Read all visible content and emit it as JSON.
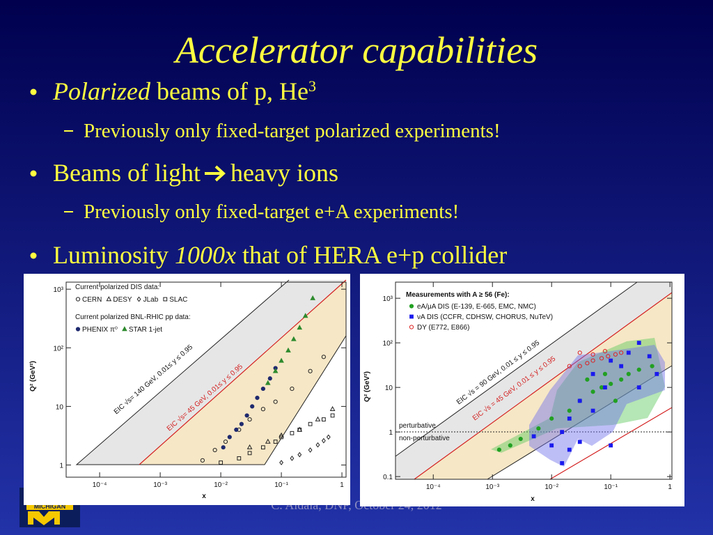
{
  "slide": {
    "title": "Accelerator capabilities",
    "bullets": [
      {
        "parts": [
          {
            "text": "Polarized",
            "italic": true
          },
          {
            "text": " beams of p, He"
          },
          {
            "text": "3",
            "sup": true
          }
        ],
        "sub": [
          "Previously only fixed-target polarized experiments!"
        ]
      },
      {
        "parts": [
          {
            "text": "Beams of light "
          },
          {
            "arrow": true
          },
          {
            "text": " heavy ions"
          }
        ],
        "sub": [
          "Previously only fixed-target e+A experiments!"
        ]
      },
      {
        "parts": [
          {
            "text": "Luminosity "
          },
          {
            "text": "1000x",
            "italic": true
          },
          {
            "text": " that of HERA e+p collider"
          }
        ],
        "sub": []
      }
    ],
    "footer": "C. Aidala, DNP, October 24, 2012",
    "logo": "MICHIGAN",
    "figures": [
      {
        "xlabel": "x",
        "ylabel": "Q² (GeV²)",
        "xlim": [
          2.8e-05,
          1.17
        ],
        "ylim": [
          0.62,
          1320
        ],
        "log": true,
        "xticks": [
          {
            "value": 0.0001,
            "label": "10⁻⁴"
          },
          {
            "value": 0.001,
            "label": "10⁻³"
          },
          {
            "value": 0.01,
            "label": "10⁻²"
          },
          {
            "value": 0.1,
            "label": "10⁻¹"
          },
          1
        ],
        "yticks": [
          1,
          10,
          {
            "value": 100,
            "label": "10²"
          },
          {
            "value": 1000,
            "label": "10³"
          }
        ],
        "annotations": [
          {
            "text": "EIC √s= 140 GeV, 0.01≤ y ≤ 0.95",
            "color": "#111111"
          },
          {
            "text": "EIC √s= 45 GeV, 0.01≤ y ≤ 0.95",
            "color": "#d42020"
          }
        ],
        "groups": [
          {
            "title": "Current polarized DIS data:",
            "series": [
              {
                "name": "CERN",
                "marker": "circle",
                "filled": false,
                "color": "#222222",
                "x": [
                  0.005,
                  0.008,
                  0.012,
                  0.02,
                  0.03,
                  0.05,
                  0.08,
                  0.15,
                  0.3,
                  0.5
                ],
                "y": [
                  1.2,
                  1.8,
                  2.5,
                  4,
                  6,
                  9,
                  12,
                  20,
                  40,
                  70
                ]
              },
              {
                "name": "DESY",
                "marker": "triangle",
                "filled": false,
                "color": "#222222",
                "x": [
                  0.03,
                  0.06,
                  0.1,
                  0.2,
                  0.4,
                  0.7
                ],
                "y": [
                  2,
                  2.5,
                  3.2,
                  4,
                  6,
                  9
                ]
              },
              {
                "name": "JLab",
                "marker": "diamond",
                "filled": false,
                "color": "#222222",
                "x": [
                  0.1,
                  0.15,
                  0.2,
                  0.3,
                  0.4,
                  0.5,
                  0.6
                ],
                "y": [
                  1.1,
                  1.3,
                  1.5,
                  1.8,
                  2.2,
                  2.6,
                  3
                ]
              },
              {
                "name": "SLAC",
                "marker": "square",
                "filled": false,
                "color": "#222222",
                "x": [
                  0.01,
                  0.02,
                  0.03,
                  0.05,
                  0.08,
                  0.1,
                  0.15,
                  0.2,
                  0.3,
                  0.5,
                  0.7
                ],
                "y": [
                  1.1,
                  1.3,
                  1.6,
                  2,
                  2.5,
                  3,
                  3.5,
                  4,
                  5,
                  6,
                  7
                ]
              }
            ]
          },
          {
            "title": "Current polarized BNL-RHIC pp data:",
            "series": [
              {
                "name": "PHENIX π⁰",
                "marker": "circle",
                "filled": true,
                "color": "#1f2a6e",
                "x": [
                  0.011,
                  0.014,
                  0.018,
                  0.022,
                  0.027,
                  0.033,
                  0.04,
                  0.05,
                  0.065,
                  0.08
                ],
                "y": [
                  2,
                  3,
                  4,
                  5,
                  7,
                  10,
                  14,
                  20,
                  30,
                  45
                ]
              },
              {
                "name": "STAR 1-jet",
                "marker": "triangle",
                "filled": true,
                "color": "#2e8b2e",
                "x": [
                  0.06,
                  0.08,
                  0.1,
                  0.13,
                  0.16,
                  0.2,
                  0.25,
                  0.33
                ],
                "y": [
                  25,
                  40,
                  60,
                  90,
                  140,
                  220,
                  350,
                  700
                ]
              }
            ]
          }
        ]
      },
      {
        "xlabel": "x",
        "ylabel": "Q² (GeV²)",
        "xlim": [
          2.3e-05,
          1.08
        ],
        "ylim": [
          0.087,
          2300
        ],
        "log": true,
        "xticks": [
          {
            "value": 0.0001,
            "label": "10⁻⁴"
          },
          {
            "value": 0.001,
            "label": "10⁻³"
          },
          {
            "value": 0.01,
            "label": "10⁻²"
          },
          {
            "value": 0.1,
            "label": "10⁻¹"
          },
          1
        ],
        "yticks": [
          0.1,
          1,
          10,
          {
            "value": 100,
            "label": "10²"
          },
          {
            "value": 1000,
            "label": "10³"
          }
        ],
        "annotations": [
          {
            "text": "EIC √s = 90 GeV, 0.01 ≤ y ≤ 0.95",
            "color": "#111111"
          },
          {
            "text": "EIC √s = 45 GeV, 0.01 ≤ y ≤ 0.95",
            "color": "#d42020"
          },
          {
            "text": "perturbative",
            "color": "#111111"
          },
          {
            "text": "non-perturbative",
            "color": "#111111"
          }
        ],
        "groups": [
          {
            "title": "Measurements with A ≥ 56 (Fe):",
            "series": [
              {
                "name": "eA/μA DIS (E-139, E-665, EMC, NMC)",
                "marker": "circle",
                "filled": true,
                "color": "#22a022",
                "x": [
                  0.0013,
                  0.002,
                  0.003,
                  0.006,
                  0.01,
                  0.02,
                  0.03,
                  0.05,
                  0.07,
                  0.1,
                  0.15,
                  0.2,
                  0.3,
                  0.5,
                  0.04,
                  0.08,
                  0.12
                ],
                "y": [
                  0.4,
                  0.5,
                  0.7,
                  1.2,
                  2,
                  3,
                  5,
                  8,
                  10,
                  12,
                  15,
                  20,
                  25,
                  30,
                  15,
                  20,
                  5
                ]
              },
              {
                "name": "νA DIS (CCFR, CDHSW, CHORUS, NuTeV)",
                "marker": "square",
                "filled": true,
                "color": "#1a1aee",
                "x": [
                  0.005,
                  0.01,
                  0.015,
                  0.02,
                  0.03,
                  0.03,
                  0.05,
                  0.05,
                  0.08,
                  0.1,
                  0.1,
                  0.15,
                  0.2,
                  0.3,
                  0.3,
                  0.45,
                  0.6,
                  0.015,
                  0.02
                ],
                "y": [
                  0.8,
                  0.5,
                  1,
                  2,
                  0.6,
                  5,
                  3,
                  20,
                  10,
                  0.5,
                  40,
                  30,
                  60,
                  100,
                  10,
                  50,
                  20,
                  0.2,
                  0.4
                ]
              },
              {
                "name": "DY (E772, E866)",
                "marker": "circle",
                "filled": false,
                "color": "#dd2222",
                "x": [
                  0.02,
                  0.03,
                  0.04,
                  0.05,
                  0.07,
                  0.09,
                  0.12,
                  0.15,
                  0.03,
                  0.05,
                  0.08
                ],
                "y": [
                  30,
                  30,
                  35,
                  40,
                  45,
                  50,
                  55,
                  60,
                  60,
                  55,
                  65
                ]
              }
            ]
          }
        ]
      }
    ]
  }
}
